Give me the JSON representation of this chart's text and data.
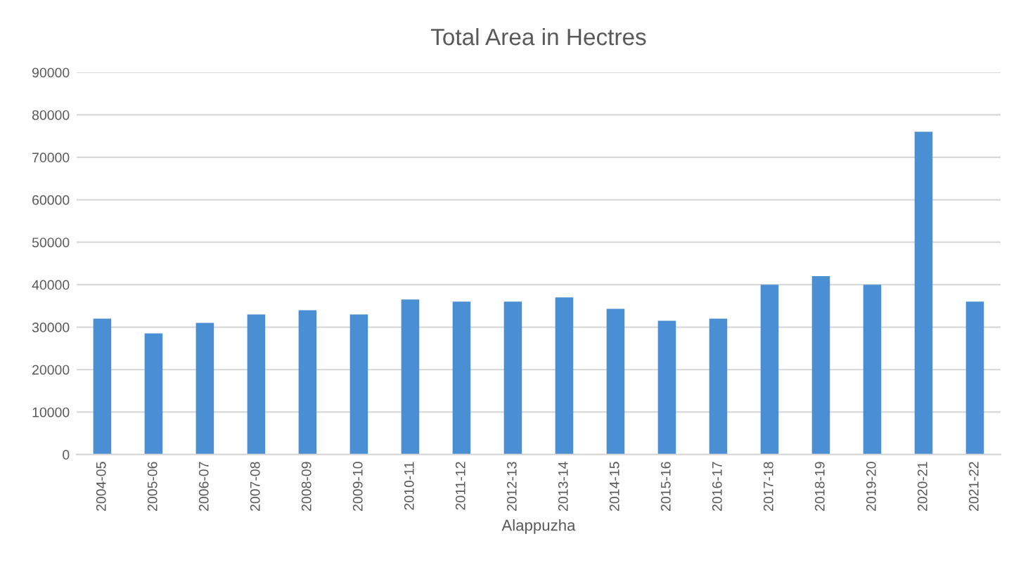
{
  "chart_data": {
    "type": "bar",
    "title": "Total Area in Hectres",
    "xlabel": "Alappuzha",
    "categories": [
      "2004-05",
      "2005-06",
      "2006-07",
      "2007-08",
      "2008-09",
      "2009-10",
      "2010-11",
      "2011-12",
      "2012-13",
      "2013-14",
      "2014-15",
      "2015-16",
      "2016-17",
      "2017-18",
      "2018-19",
      "2019-20",
      "2020-21",
      "2021-22"
    ],
    "values": [
      32000,
      28500,
      31000,
      33000,
      34000,
      33000,
      36500,
      36000,
      36000,
      37000,
      34300,
      31500,
      32000,
      40000,
      42000,
      40000,
      76000,
      36000
    ],
    "color": "#4a8ed4",
    "ylim": [
      0,
      90000
    ],
    "yticks": [
      0,
      10000,
      20000,
      30000,
      40000,
      50000,
      60000,
      70000,
      80000,
      90000
    ],
    "grid": "y",
    "legend": false
  }
}
